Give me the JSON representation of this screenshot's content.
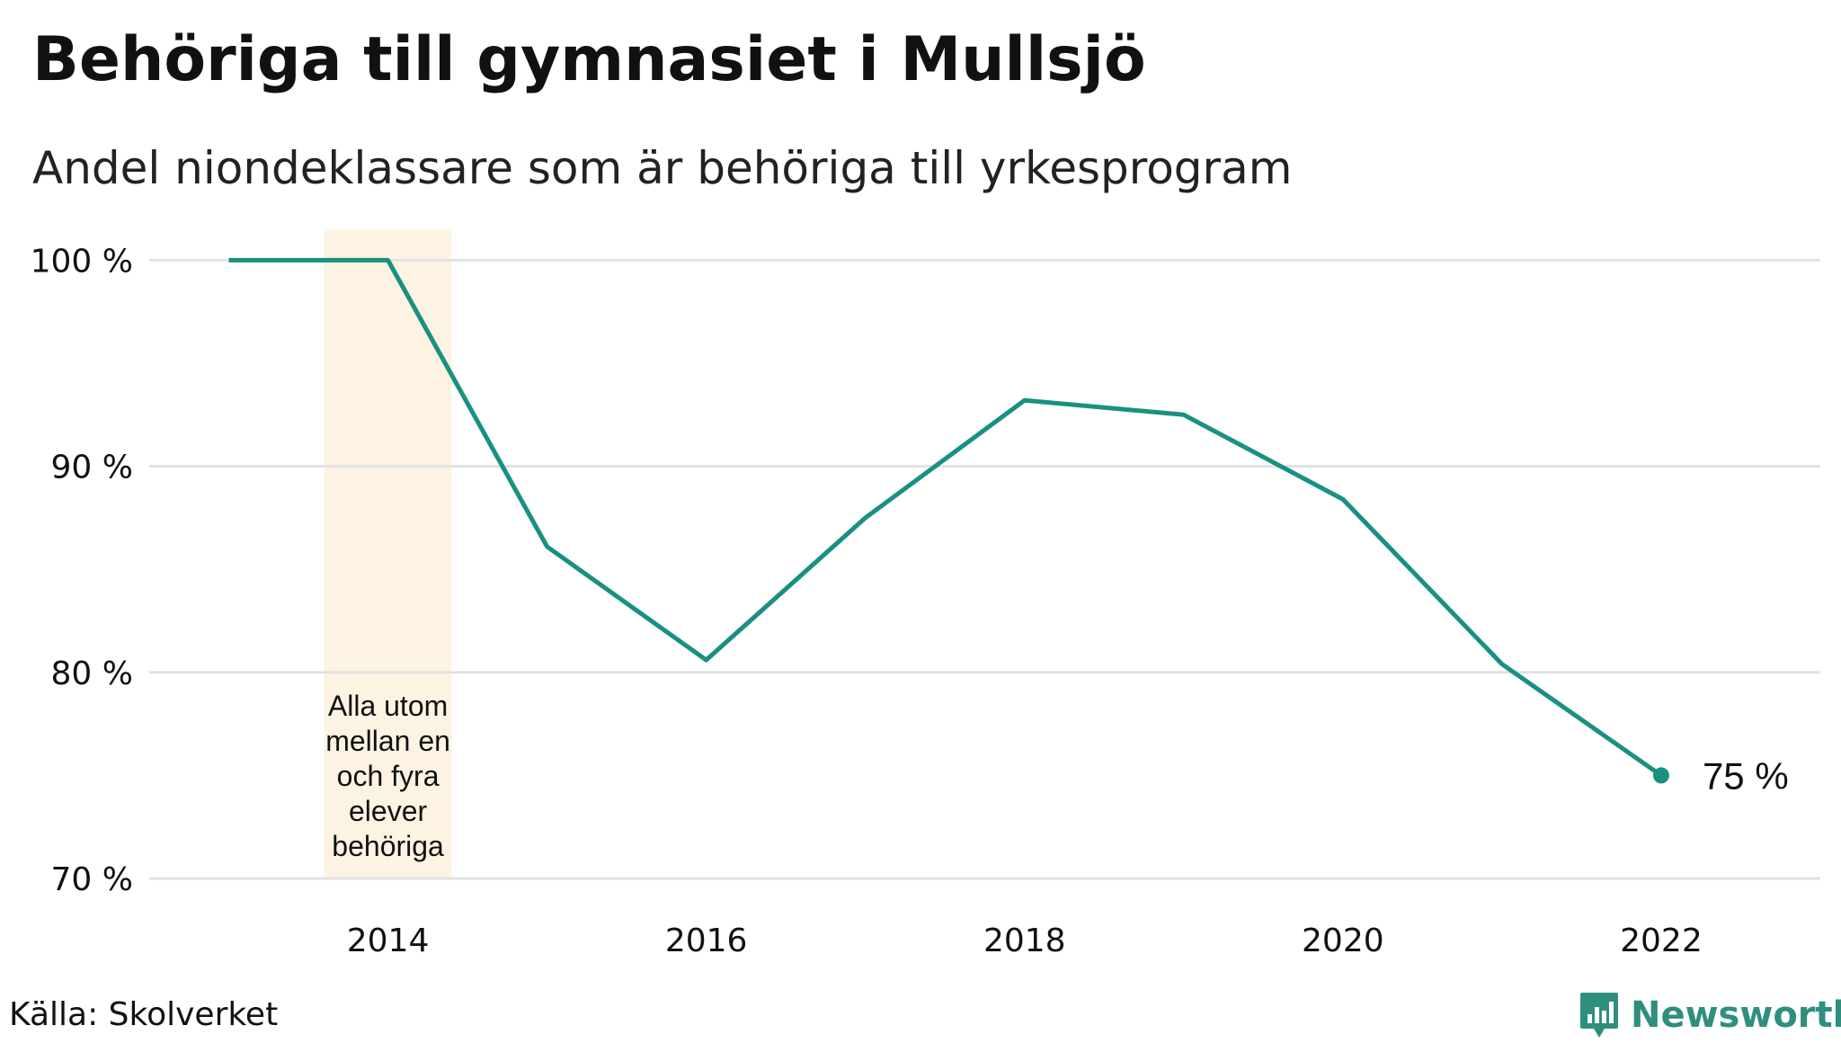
{
  "title": "Behöriga till gymnasiet i Mullsjö",
  "subtitle": "Andel niondeklassare som är behöriga till yrkesprogram",
  "source": "Källa: Skolverket",
  "brand": {
    "name": "Newsworthy",
    "icon": "newsworthy-logo-icon",
    "color": "#2e8f7f"
  },
  "chart_data": {
    "type": "line",
    "x": [
      2013,
      2014,
      2015,
      2016,
      2017,
      2018,
      2019,
      2020,
      2021,
      2022
    ],
    "series": [
      {
        "values": [
          100,
          100,
          86.1,
          80.6,
          87.5,
          93.2,
          92.5,
          88.4,
          80.4,
          75
        ],
        "color": "#1a9080"
      }
    ],
    "xticks": [
      2014,
      2016,
      2018,
      2020,
      2022
    ],
    "xtick_labels": [
      "2014",
      "2016",
      "2018",
      "2020",
      "2022"
    ],
    "yticks": [
      70,
      80,
      90,
      100
    ],
    "ytick_labels": [
      "70 %",
      "80 %",
      "90 %",
      "100 %"
    ],
    "xlim": [
      2012.5,
      2023
    ],
    "ylim": [
      70,
      101.5
    ],
    "grid": "horizontal",
    "end_label": "75  %",
    "highlight": {
      "x_range": [
        2013.6,
        2014.4
      ],
      "color": "#fdf3e3",
      "text": "Alla utom mellan en och fyra elever behöriga",
      "text_lines": [
        "Alla utom",
        "mellan en",
        "och fyra",
        "elever",
        "behöriga"
      ]
    }
  }
}
